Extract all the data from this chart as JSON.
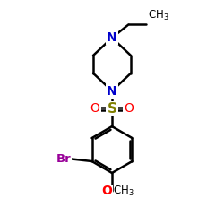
{
  "bg_color": "#ffffff",
  "bond_color": "#000000",
  "N_color": "#0000cc",
  "O_color": "#ff0000",
  "S_color": "#808000",
  "Br_color": "#990099",
  "line_width": 1.8,
  "font_size": 10,
  "fig_w": 2.5,
  "fig_h": 2.5,
  "dpi": 100,
  "xlim": [
    0,
    10
  ],
  "ylim": [
    0,
    10
  ]
}
